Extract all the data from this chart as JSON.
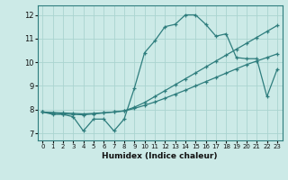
{
  "title": "",
  "xlabel": "Humidex (Indice chaleur)",
  "xlim": [
    -0.5,
    23.5
  ],
  "ylim": [
    6.7,
    12.4
  ],
  "yticks": [
    7,
    8,
    9,
    10,
    11,
    12
  ],
  "xticks": [
    0,
    1,
    2,
    3,
    4,
    5,
    6,
    7,
    8,
    9,
    10,
    11,
    12,
    13,
    14,
    15,
    16,
    17,
    18,
    19,
    20,
    21,
    22,
    23
  ],
  "bg_color": "#cceae7",
  "line_color": "#2e7d7d",
  "grid_color": "#aad4d0",
  "line1_y": [
    7.9,
    7.8,
    7.8,
    7.7,
    7.1,
    7.6,
    7.6,
    7.1,
    7.6,
    8.9,
    10.4,
    10.9,
    11.5,
    11.6,
    12.0,
    12.0,
    11.6,
    11.1,
    11.2,
    10.2,
    10.15,
    10.15,
    8.55,
    9.7
  ],
  "line2_y": [
    7.9,
    7.85,
    7.82,
    7.8,
    7.78,
    7.82,
    7.86,
    7.9,
    7.94,
    8.05,
    8.18,
    8.32,
    8.48,
    8.65,
    8.82,
    9.0,
    9.18,
    9.36,
    9.54,
    9.72,
    9.9,
    10.05,
    10.2,
    10.35
  ],
  "line3_y": [
    7.9,
    7.88,
    7.86,
    7.84,
    7.82,
    7.84,
    7.87,
    7.9,
    7.95,
    8.1,
    8.3,
    8.55,
    8.8,
    9.05,
    9.3,
    9.55,
    9.8,
    10.05,
    10.3,
    10.55,
    10.8,
    11.05,
    11.3,
    11.55
  ]
}
